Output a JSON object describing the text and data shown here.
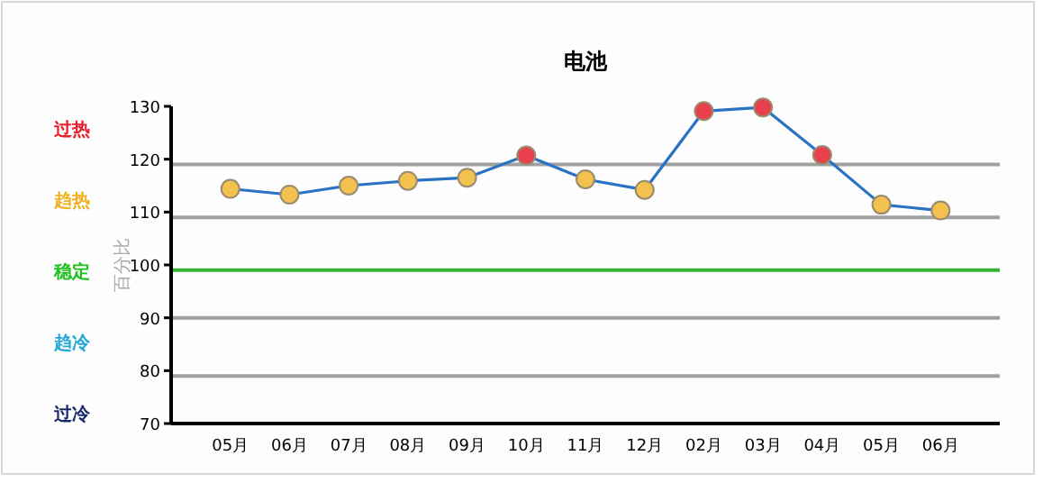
{
  "chart_data": {
    "type": "line",
    "title": "电池",
    "ylabel": "百分比",
    "categories": [
      "05月",
      "06月",
      "07月",
      "08月",
      "09月",
      "10月",
      "11月",
      "12月",
      "02月",
      "03月",
      "04月",
      "05月",
      "06月"
    ],
    "series": [
      {
        "color": "#2a72c4",
        "values": [
          114.4,
          113.3,
          115.0,
          115.9,
          116.5,
          120.7,
          116.2,
          114.2,
          129.1,
          129.8,
          120.8,
          111.4,
          110.3
        ],
        "colors": [
          "#f2c14e",
          "#f2c14e",
          "#f2c14e",
          "#f2c14e",
          "#f2c14e",
          "#e8404c",
          "#f2c14e",
          "#f2c14e",
          "#e8404c",
          "#e8404c",
          "#e8404c",
          "#f2c14e",
          "#f2c14e"
        ]
      }
    ],
    "ylim": [
      70,
      130
    ],
    "yticks": [
      70,
      80,
      90,
      100,
      110,
      120,
      130
    ],
    "ref_lines": [
      {
        "axis": "y",
        "value": 119,
        "color": "#a0a0a0"
      },
      {
        "axis": "y",
        "value": 109,
        "color": "#a0a0a0"
      },
      {
        "axis": "y",
        "value": 99,
        "color": "#33b233"
      },
      {
        "axis": "y",
        "value": 90,
        "color": "#a0a0a0"
      },
      {
        "axis": "y",
        "value": 79,
        "color": "#a0a0a0"
      }
    ],
    "annotations": [
      "过热",
      "趋热",
      "稳定",
      "趋冷",
      "过冷"
    ],
    "marker": "circle",
    "grid": false
  }
}
